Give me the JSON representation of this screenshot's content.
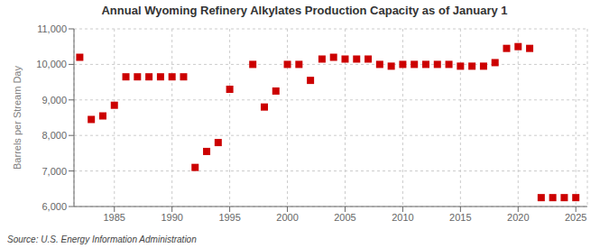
{
  "chart_data": {
    "type": "scatter",
    "title": "Annual Wyoming Refinery Alkylates Production Capacity as of January 1",
    "ylabel": "Barrels per Stream Day",
    "annotation": "Source: U.S. Energy Information Administration",
    "x": [
      1982,
      1983,
      1984,
      1985,
      1986,
      1987,
      1988,
      1989,
      1990,
      1991,
      1992,
      1993,
      1994,
      1995,
      1997,
      1998,
      1999,
      2000,
      2001,
      2002,
      2003,
      2004,
      2005,
      2006,
      2007,
      2008,
      2009,
      2010,
      2011,
      2012,
      2013,
      2014,
      2015,
      2016,
      2017,
      2018,
      2019,
      2020,
      2021,
      2022,
      2023,
      2024,
      2025
    ],
    "values": [
      10200,
      8450,
      8550,
      8850,
      9650,
      9650,
      9650,
      9650,
      9650,
      9650,
      7100,
      7550,
      7800,
      9300,
      10000,
      8800,
      9250,
      10000,
      10000,
      9550,
      10150,
      10200,
      10150,
      10150,
      10150,
      10000,
      9950,
      10000,
      10000,
      10000,
      10000,
      10000,
      9950,
      9950,
      9950,
      10050,
      10450,
      10500,
      10450,
      6250,
      6250,
      6250,
      6250
    ],
    "color": "#cc0000",
    "marker": "square",
    "xlim": [
      1981.5,
      2026
    ],
    "ylim": [
      6000,
      11000
    ],
    "xticks": [
      1985,
      1990,
      1995,
      2000,
      2005,
      2010,
      2015,
      2020,
      2025
    ],
    "yticks": [
      {
        "value": 6000,
        "label": "6,000"
      },
      {
        "value": 7000,
        "label": "7,000"
      },
      {
        "value": 8000,
        "label": "8,000"
      },
      {
        "value": 9000,
        "label": "9,000"
      },
      {
        "value": 10000,
        "label": "10,000"
      },
      {
        "value": 11000,
        "label": "11,000"
      }
    ],
    "grid": true
  }
}
